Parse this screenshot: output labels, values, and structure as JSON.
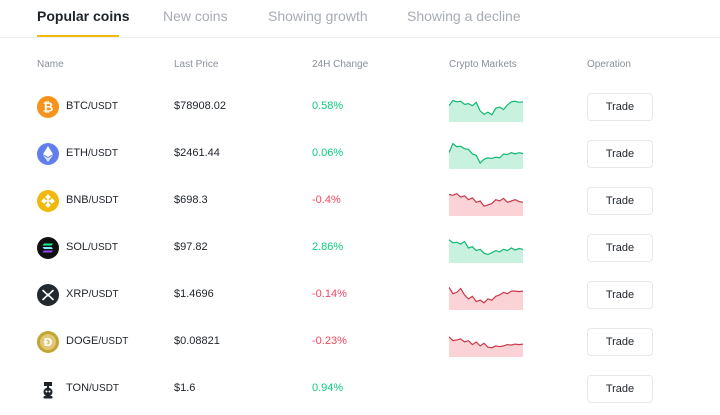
{
  "tabs": [
    {
      "label": "Popular coins",
      "active": true
    },
    {
      "label": "New coins",
      "active": false
    },
    {
      "label": "Showing growth",
      "active": false
    },
    {
      "label": "Showing a decline",
      "active": false
    }
  ],
  "headers": {
    "name": "Name",
    "last_price": "Last Price",
    "change": "24H Change",
    "markets": "Crypto Markets",
    "operation": "Operation"
  },
  "colors": {
    "up": "#0ecb81",
    "down": "#f6465d",
    "accent": "#f0b90b"
  },
  "coins": [
    {
      "base": "BTC",
      "quote": "/USDT",
      "price": "$78908.02",
      "change": "0.58%",
      "direction": "up",
      "icon": "bitcoin-icon",
      "icon_color": "#f7931a",
      "trade_label": "Trade",
      "spark": [
        0.55,
        0.75,
        0.7,
        0.72,
        0.6,
        0.63,
        0.55,
        0.68,
        0.35,
        0.22,
        0.3,
        0.2,
        0.45,
        0.5,
        0.4,
        0.58,
        0.7,
        0.72,
        0.68,
        0.7
      ]
    },
    {
      "base": "ETH",
      "quote": "/USDT",
      "price": "$2461.44",
      "change": "0.06%",
      "direction": "up",
      "icon": "ethereum-icon",
      "icon_color": "#627eea",
      "trade_label": "Trade",
      "spark": [
        0.55,
        0.9,
        0.78,
        0.8,
        0.7,
        0.68,
        0.5,
        0.45,
        0.15,
        0.3,
        0.35,
        0.33,
        0.38,
        0.35,
        0.5,
        0.48,
        0.55,
        0.5,
        0.55,
        0.52
      ]
    },
    {
      "base": "BNB",
      "quote": "/USDT",
      "price": "$698.3",
      "change": "-0.4%",
      "direction": "down",
      "icon": "bnb-icon",
      "icon_color": "#f0b90b",
      "trade_label": "Trade",
      "spark": [
        0.75,
        0.72,
        0.78,
        0.65,
        0.7,
        0.55,
        0.62,
        0.45,
        0.5,
        0.3,
        0.35,
        0.4,
        0.55,
        0.5,
        0.6,
        0.45,
        0.5,
        0.55,
        0.48,
        0.45
      ]
    },
    {
      "base": "SOL",
      "quote": "/USDT",
      "price": "$97.82",
      "change": "2.86%",
      "direction": "up",
      "icon": "solana-icon",
      "icon_color": "#111111",
      "trade_label": "Trade",
      "spark": [
        0.82,
        0.7,
        0.72,
        0.65,
        0.75,
        0.5,
        0.55,
        0.4,
        0.45,
        0.3,
        0.25,
        0.32,
        0.4,
        0.35,
        0.45,
        0.4,
        0.5,
        0.42,
        0.48,
        0.45
      ]
    },
    {
      "base": "XRP",
      "quote": "/USDT",
      "price": "$1.4696",
      "change": "-0.14%",
      "direction": "down",
      "icon": "xrp-icon",
      "icon_color": "#23292f",
      "trade_label": "Trade",
      "spark": [
        0.8,
        0.55,
        0.6,
        0.75,
        0.5,
        0.35,
        0.45,
        0.25,
        0.3,
        0.2,
        0.35,
        0.3,
        0.45,
        0.5,
        0.6,
        0.55,
        0.65,
        0.65,
        0.63,
        0.65
      ]
    },
    {
      "base": "DOGE",
      "quote": "/USDT",
      "price": "$0.08821",
      "change": "-0.23%",
      "direction": "down",
      "icon": "dogecoin-icon",
      "icon_color": "#c2a633",
      "trade_label": "Trade",
      "spark": [
        0.7,
        0.55,
        0.58,
        0.62,
        0.5,
        0.55,
        0.4,
        0.5,
        0.35,
        0.45,
        0.3,
        0.28,
        0.35,
        0.32,
        0.35,
        0.4,
        0.38,
        0.42,
        0.4,
        0.42
      ]
    },
    {
      "base": "TON",
      "quote": "/USDT",
      "price": "$1.6",
      "change": "0.94%",
      "direction": "up",
      "icon": "ton-icon",
      "icon_color": "#1e2329",
      "trade_label": "Trade",
      "spark": null
    }
  ]
}
